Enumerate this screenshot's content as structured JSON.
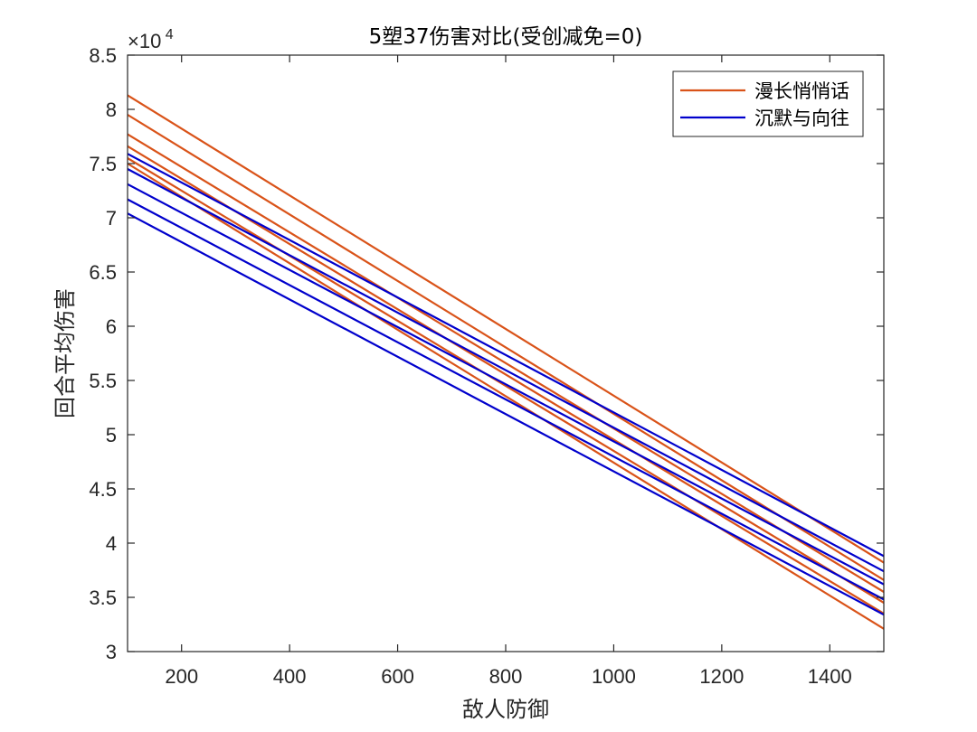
{
  "chart_data": {
    "type": "line",
    "title": "5塑37伤害对比(受创减免=0)",
    "xlabel": "敌人防御",
    "ylabel": "回合平均伤害",
    "xlim": [
      100,
      1500
    ],
    "ylim": [
      3,
      8.5
    ],
    "y_multiplier": "×10",
    "y_multiplier_exp": "4",
    "xticks": [
      200,
      400,
      600,
      800,
      1000,
      1200,
      1400
    ],
    "yticks": [
      3,
      3.5,
      4,
      4.5,
      5,
      5.5,
      6,
      6.5,
      7,
      7.5,
      8,
      8.5
    ],
    "xtick_labels": [
      "200",
      "400",
      "600",
      "800",
      "1000",
      "1200",
      "1400"
    ],
    "ytick_labels": [
      "3",
      "3.5",
      "4",
      "4.5",
      "5",
      "5.5",
      "6",
      "6.5",
      "7",
      "7.5",
      "8",
      "8.5"
    ],
    "legend": {
      "placement": "top-right",
      "entries": [
        "漫长悄悄话",
        "沉默与向往"
      ]
    },
    "series": [
      {
        "name": "漫长悄悄话",
        "group": 0,
        "color": "#D95319",
        "x": [
          100,
          1500
        ],
        "y": [
          8.13,
          3.82
        ]
      },
      {
        "name": "漫长悄悄话",
        "group": 0,
        "color": "#D95319",
        "x": [
          100,
          1500
        ],
        "y": [
          7.95,
          3.66
        ]
      },
      {
        "name": "漫长悄悄话",
        "group": 0,
        "color": "#D95319",
        "x": [
          100,
          1500
        ],
        "y": [
          7.77,
          3.55
        ]
      },
      {
        "name": "漫长悄悄话",
        "group": 0,
        "color": "#D95319",
        "x": [
          100,
          1500
        ],
        "y": [
          7.66,
          3.45
        ]
      },
      {
        "name": "漫长悄悄话",
        "group": 0,
        "color": "#D95319",
        "x": [
          100,
          1500
        ],
        "y": [
          7.55,
          3.35
        ]
      },
      {
        "name": "漫长悄悄话",
        "group": 0,
        "color": "#D95319",
        "x": [
          100,
          1500
        ],
        "y": [
          7.5,
          3.21
        ]
      },
      {
        "name": "沉默与向往",
        "group": 1,
        "color": "#0000CC",
        "x": [
          100,
          1500
        ],
        "y": [
          7.59,
          3.88
        ]
      },
      {
        "name": "沉默与向往",
        "group": 1,
        "color": "#0000CC",
        "x": [
          100,
          1500
        ],
        "y": [
          7.45,
          3.74
        ]
      },
      {
        "name": "沉默与向往",
        "group": 1,
        "color": "#0000CC",
        "x": [
          100,
          1500
        ],
        "y": [
          7.31,
          3.62
        ]
      },
      {
        "name": "沉默与向往",
        "group": 1,
        "color": "#0000CC",
        "x": [
          100,
          1500
        ],
        "y": [
          7.17,
          3.48
        ]
      },
      {
        "name": "沉默与向往",
        "group": 1,
        "color": "#0000CC",
        "x": [
          100,
          1500
        ],
        "y": [
          7.04,
          3.34
        ]
      }
    ]
  }
}
